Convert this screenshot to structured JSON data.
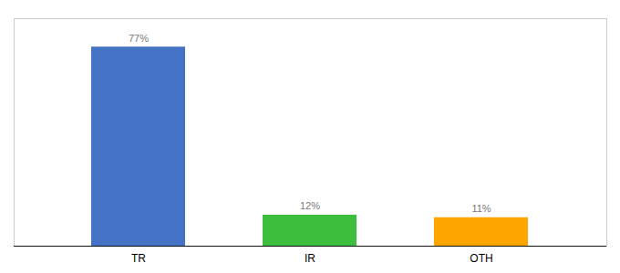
{
  "chart_data": {
    "type": "bar",
    "categories": [
      "TR",
      "IR",
      "OTH"
    ],
    "values": [
      77,
      12,
      11
    ],
    "value_labels": [
      "77%",
      "12%",
      "11%"
    ],
    "colors": [
      "#4472C4",
      "#3DBF3D",
      "#FFA500"
    ],
    "ylim": [
      0,
      88
    ],
    "data_labels": true,
    "tick_labels": "x"
  }
}
